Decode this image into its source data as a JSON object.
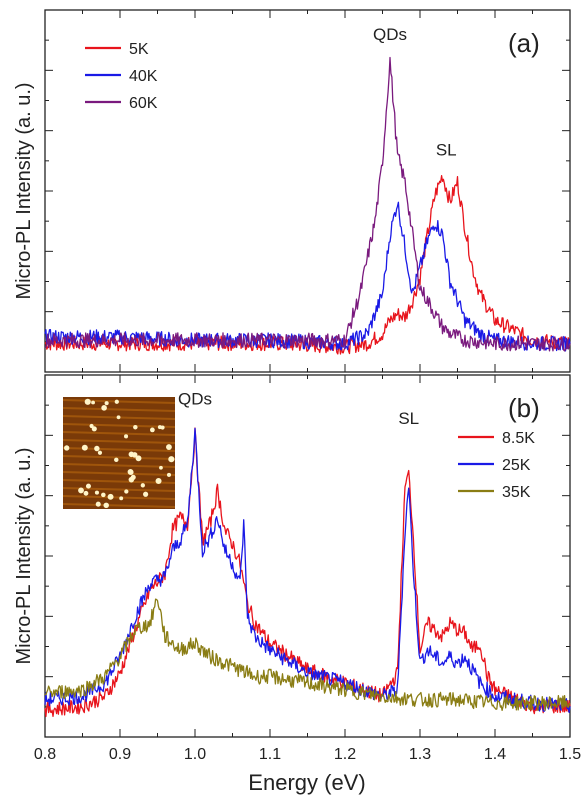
{
  "figure": {
    "xlabel": "Energy (eV)",
    "panels_label": [
      "(a)",
      "(b)"
    ]
  },
  "chart_data": [
    {
      "type": "line",
      "panel": "(a)",
      "ylabel": "Micro-PL Intensity (a. u.)",
      "xlim": [
        0.8,
        1.5
      ],
      "ylim": [
        0,
        1.0
      ],
      "yticks_labeled": false,
      "annotations": [
        {
          "text": "QDs",
          "x": 1.26,
          "y": 0.97
        },
        {
          "text": "SL",
          "x": 1.335,
          "y": 0.62
        }
      ],
      "legend_position": "top-left",
      "series": [
        {
          "name": "5K",
          "color": "#e8141c",
          "x": [
            0.8,
            0.9,
            1.0,
            1.1,
            1.2,
            1.23,
            1.25,
            1.26,
            1.27,
            1.28,
            1.29,
            1.3,
            1.31,
            1.32,
            1.33,
            1.34,
            1.35,
            1.36,
            1.37,
            1.38,
            1.4,
            1.45,
            1.5
          ],
          "y": [
            0.05,
            0.05,
            0.05,
            0.05,
            0.04,
            0.05,
            0.08,
            0.12,
            0.14,
            0.13,
            0.18,
            0.25,
            0.38,
            0.5,
            0.56,
            0.48,
            0.54,
            0.4,
            0.28,
            0.2,
            0.12,
            0.06,
            0.05
          ]
        },
        {
          "name": "40K",
          "color": "#1a1ae6",
          "x": [
            0.8,
            0.9,
            1.0,
            1.1,
            1.2,
            1.23,
            1.25,
            1.26,
            1.27,
            1.28,
            1.29,
            1.3,
            1.31,
            1.32,
            1.33,
            1.34,
            1.35,
            1.36,
            1.38,
            1.4,
            1.45,
            1.5
          ],
          "y": [
            0.07,
            0.07,
            0.06,
            0.06,
            0.05,
            0.08,
            0.2,
            0.38,
            0.48,
            0.34,
            0.2,
            0.28,
            0.36,
            0.42,
            0.38,
            0.24,
            0.18,
            0.12,
            0.08,
            0.06,
            0.05,
            0.05
          ]
        },
        {
          "name": "60K",
          "color": "#7a1a7e",
          "x": [
            0.8,
            0.9,
            1.0,
            1.1,
            1.2,
            1.22,
            1.24,
            1.25,
            1.26,
            1.27,
            1.28,
            1.29,
            1.3,
            1.31,
            1.32,
            1.33,
            1.34,
            1.36,
            1.4,
            1.45,
            1.5
          ],
          "y": [
            0.06,
            0.06,
            0.06,
            0.06,
            0.06,
            0.2,
            0.42,
            0.6,
            0.91,
            0.62,
            0.54,
            0.38,
            0.22,
            0.18,
            0.14,
            0.1,
            0.08,
            0.06,
            0.05,
            0.05,
            0.05
          ]
        }
      ]
    },
    {
      "type": "line",
      "panel": "(b)",
      "ylabel": "Micro-PL Intensity (a. u.)",
      "xlim": [
        0.8,
        1.5
      ],
      "ylim": [
        0,
        1.0
      ],
      "xticks": [
        "0.8",
        "0.9",
        "1.0",
        "1.1",
        "1.2",
        "1.3",
        "1.4",
        "1.5"
      ],
      "yticks_labeled": false,
      "annotations": [
        {
          "text": "QDs",
          "x": 1.0,
          "y": 0.96
        },
        {
          "text": "SL",
          "x": 1.285,
          "y": 0.9
        }
      ],
      "legend_position": "top-right",
      "inset": "afm-image",
      "series": [
        {
          "name": "8.5K",
          "color": "#e8141c",
          "x": [
            0.8,
            0.85,
            0.88,
            0.9,
            0.92,
            0.94,
            0.96,
            0.97,
            0.98,
            0.99,
            1.0,
            1.01,
            1.02,
            1.03,
            1.04,
            1.05,
            1.06,
            1.07,
            1.08,
            1.1,
            1.15,
            1.2,
            1.25,
            1.27,
            1.28,
            1.285,
            1.29,
            1.3,
            1.31,
            1.32,
            1.33,
            1.34,
            1.35,
            1.36,
            1.37,
            1.38,
            1.39,
            1.4,
            1.45,
            1.5
          ],
          "y": [
            0.04,
            0.05,
            0.08,
            0.15,
            0.28,
            0.4,
            0.45,
            0.58,
            0.62,
            0.6,
            0.87,
            0.55,
            0.6,
            0.7,
            0.58,
            0.54,
            0.48,
            0.36,
            0.3,
            0.24,
            0.16,
            0.12,
            0.08,
            0.15,
            0.71,
            0.75,
            0.6,
            0.22,
            0.3,
            0.28,
            0.26,
            0.3,
            0.28,
            0.27,
            0.22,
            0.24,
            0.14,
            0.1,
            0.05,
            0.05
          ]
        },
        {
          "name": "25K",
          "color": "#1a1ae6",
          "x": [
            0.8,
            0.85,
            0.88,
            0.9,
            0.92,
            0.94,
            0.96,
            0.97,
            0.98,
            0.99,
            1.0,
            1.01,
            1.02,
            1.03,
            1.04,
            1.05,
            1.06,
            1.065,
            1.07,
            1.08,
            1.1,
            1.15,
            1.2,
            1.25,
            1.27,
            1.28,
            1.285,
            1.29,
            1.3,
            1.31,
            1.32,
            1.33,
            1.34,
            1.35,
            1.36,
            1.37,
            1.38,
            1.4,
            1.45,
            1.5
          ],
          "y": [
            0.07,
            0.08,
            0.12,
            0.2,
            0.32,
            0.42,
            0.44,
            0.52,
            0.55,
            0.6,
            0.88,
            0.52,
            0.56,
            0.62,
            0.52,
            0.48,
            0.42,
            0.6,
            0.32,
            0.26,
            0.22,
            0.15,
            0.12,
            0.08,
            0.1,
            0.58,
            0.72,
            0.5,
            0.18,
            0.22,
            0.2,
            0.18,
            0.2,
            0.18,
            0.2,
            0.16,
            0.12,
            0.08,
            0.06,
            0.05
          ]
        },
        {
          "name": "35K",
          "color": "#8a7d14",
          "x": [
            0.8,
            0.85,
            0.88,
            0.9,
            0.92,
            0.94,
            0.95,
            0.96,
            0.98,
            1.0,
            1.02,
            1.04,
            1.06,
            1.08,
            1.1,
            1.15,
            1.2,
            1.25,
            1.3,
            1.35,
            1.4,
            1.45,
            1.5
          ],
          "y": [
            0.09,
            0.1,
            0.14,
            0.2,
            0.28,
            0.3,
            0.38,
            0.26,
            0.22,
            0.24,
            0.2,
            0.18,
            0.16,
            0.14,
            0.14,
            0.12,
            0.1,
            0.08,
            0.07,
            0.07,
            0.06,
            0.06,
            0.06
          ]
        }
      ]
    }
  ]
}
